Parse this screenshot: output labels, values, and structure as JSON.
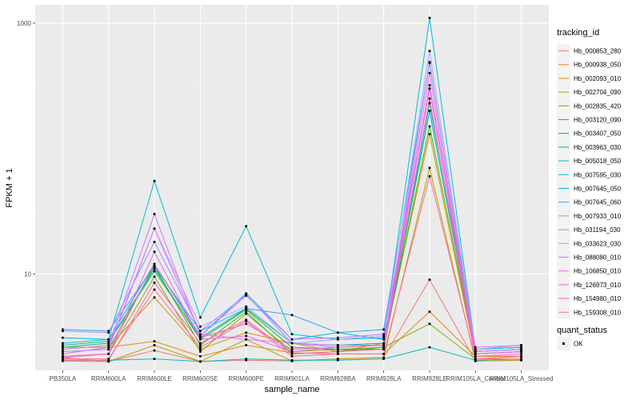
{
  "chart_data": {
    "type": "line",
    "xlabel": "sample_name",
    "ylabel": "FPKM + 1",
    "y_scale": "log10",
    "ylim": [
      1.7,
      1400
    ],
    "yticks": [
      10,
      1000
    ],
    "ytick_labels": [
      "10",
      "1000"
    ],
    "grid": true,
    "legend_position": "right",
    "categories": [
      "PB350LA",
      "RRIM600LA",
      "RRIM600LE",
      "RRIM600SE",
      "RRIM600PE",
      "RRIM901LA",
      "RRIM928BA",
      "RRIM928LA",
      "RRIM928LE",
      "RRIM105LA_Control",
      "RRIM105LA_Stressed"
    ],
    "legend_title": "tracking_id",
    "series": [
      {
        "name": "Hb_000853_280",
        "color": "#F8766D",
        "values": [
          2.15,
          2.0,
          2.45,
          2.0,
          2.05,
          2.02,
          2.1,
          2.15,
          9.0,
          2.02,
          2.05
        ]
      },
      {
        "name": "Hb_000938_050",
        "color": "#E7851E",
        "values": [
          2.6,
          2.6,
          2.9,
          2.2,
          2.7,
          2.35,
          2.3,
          2.3,
          5.0,
          2.2,
          2.2
        ]
      },
      {
        "name": "Hb_002093_010",
        "color": "#D09400",
        "values": [
          2.3,
          2.6,
          6.5,
          2.5,
          3.4,
          2.8,
          2.4,
          2.8,
          130,
          2.2,
          2.2
        ]
      },
      {
        "name": "Hb_002704_090",
        "color": "#B2A100",
        "values": [
          2.02,
          2.0,
          2.7,
          2.0,
          3.0,
          2.02,
          2.1,
          2.15,
          70,
          2.02,
          2.05
        ]
      },
      {
        "name": "Hb_002835_420",
        "color": "#89AC00",
        "values": [
          2.2,
          2.3,
          9.5,
          2.4,
          4.8,
          2.4,
          2.5,
          2.6,
          4.0,
          2.1,
          2.2
        ]
      },
      {
        "name": "Hb_003120_090",
        "color": "#45B500",
        "values": [
          2.4,
          2.5,
          11.5,
          2.7,
          5.0,
          2.3,
          2.4,
          2.6,
          150,
          2.3,
          2.4
        ]
      },
      {
        "name": "Hb_003407_050",
        "color": "#00BC51",
        "values": [
          2.6,
          2.8,
          11.0,
          3.0,
          5.2,
          2.6,
          2.5,
          2.5,
          200,
          2.4,
          2.5
        ]
      },
      {
        "name": "Hb_003963_030",
        "color": "#00C087",
        "values": [
          2.7,
          2.9,
          10.5,
          3.1,
          5.3,
          2.8,
          2.7,
          2.8,
          230,
          2.5,
          2.6
        ]
      },
      {
        "name": "Hb_005018_050",
        "color": "#00C0B2",
        "values": [
          2.05,
          2.05,
          2.1,
          2.0,
          2.1,
          2.05,
          2.05,
          2.1,
          2.6,
          2.05,
          2.1
        ]
      },
      {
        "name": "Hb_007595_030",
        "color": "#00BCD6",
        "values": [
          2.8,
          3.0,
          55,
          4.5,
          24,
          3.3,
          3.0,
          3.1,
          1100,
          2.5,
          2.6
        ]
      },
      {
        "name": "Hb_007645_050",
        "color": "#00B3F2",
        "values": [
          3.1,
          3.0,
          12.0,
          3.2,
          7.0,
          3.0,
          3.4,
          3.0,
          200,
          2.3,
          2.4
        ]
      },
      {
        "name": "Hb_007645_060",
        "color": "#29A3FF",
        "values": [
          3.6,
          3.5,
          11.5,
          3.5,
          5.3,
          4.7,
          3.4,
          3.6,
          480,
          2.4,
          2.5
        ]
      },
      {
        "name": "Hb_007933_010",
        "color": "#9C8DFF",
        "values": [
          3.5,
          3.4,
          18,
          3.5,
          6.8,
          2.8,
          2.6,
          2.7,
          490,
          2.3,
          2.4
        ]
      },
      {
        "name": "Hb_031194_030",
        "color": "#C47BFF",
        "values": [
          2.5,
          2.7,
          30,
          3.2,
          6.7,
          3.0,
          3.1,
          3.3,
          300,
          2.6,
          2.7
        ]
      },
      {
        "name": "Hb_033623_030",
        "color": "#B19EFF",
        "values": [
          2.4,
          2.5,
          23,
          3.8,
          5.5,
          2.8,
          3.0,
          3.2,
          600,
          2.5,
          2.7
        ]
      },
      {
        "name": "Hb_088080_010",
        "color": "#D874FD",
        "values": [
          2.3,
          2.6,
          23,
          3.3,
          3.0,
          2.8,
          2.7,
          2.7,
          320,
          2.4,
          2.5
        ]
      },
      {
        "name": "Hb_106850_010",
        "color": "#ED67E6",
        "values": [
          2.15,
          2.3,
          15,
          3.0,
          3.2,
          2.4,
          2.6,
          2.7,
          400,
          2.2,
          2.3
        ]
      },
      {
        "name": "Hb_126973_010",
        "color": "#FA62D2",
        "values": [
          2.2,
          2.3,
          12,
          3.1,
          4.0,
          2.5,
          2.6,
          2.7,
          300,
          2.3,
          2.4
        ]
      },
      {
        "name": "Hb_154980_010",
        "color": "#FF64B2",
        "values": [
          2.05,
          2.05,
          8.5,
          2.8,
          4.3,
          2.3,
          2.4,
          2.5,
          250,
          2.1,
          2.2
        ]
      },
      {
        "name": "Hb_159308_010",
        "color": "#FF6C91",
        "values": [
          2.1,
          2.1,
          7.5,
          2.6,
          4.2,
          2.2,
          2.3,
          2.3,
          60,
          2.1,
          2.1
        ]
      }
    ],
    "shape_legend": {
      "title": "quant_status",
      "items": [
        "OK"
      ]
    }
  }
}
